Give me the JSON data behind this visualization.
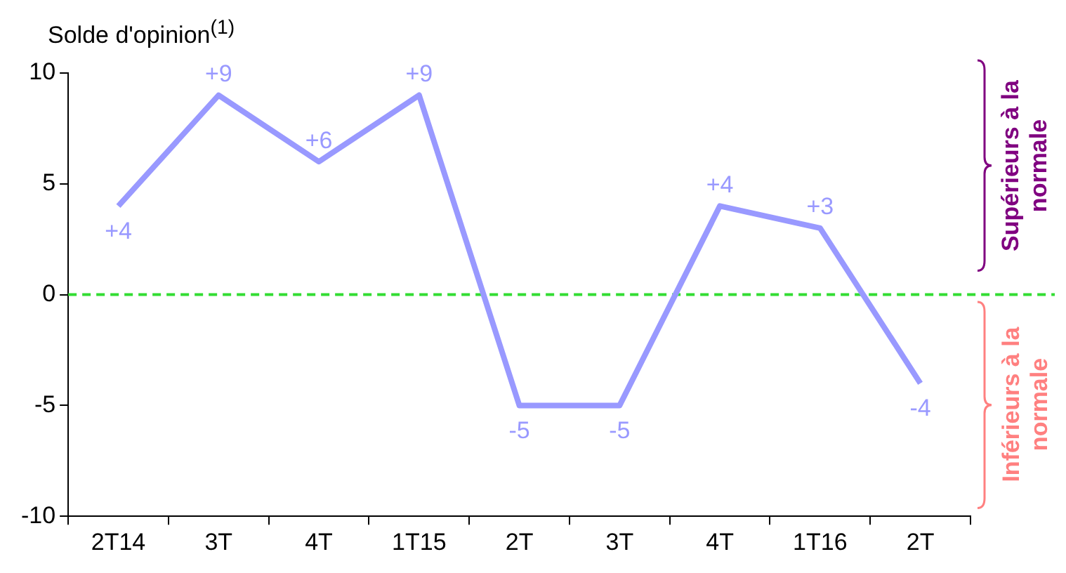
{
  "chart_data": {
    "type": "line",
    "title": "Solde d'opinion$^{(1)}$",
    "categories": [
      "2T14",
      "3T",
      "4T",
      "1T15",
      "2T",
      "3T",
      "4T",
      "1T16",
      "2T"
    ],
    "series": [
      {
        "color": "#9999ff",
        "values": [
          4,
          9,
          6,
          9,
          -5,
          -5,
          4,
          3,
          -4
        ]
      }
    ],
    "value_labels": [
      "+4",
      "+9",
      "+6",
      "+9",
      "-5",
      "-5",
      "+4",
      "+3",
      "-4"
    ],
    "ylim": [
      -10,
      10
    ],
    "yticks": [
      -10,
      -5,
      0,
      5,
      10
    ],
    "grid": false,
    "legend": false,
    "marker": "none",
    "line_style": "solid",
    "ref_lines": [
      {
        "axis": "y",
        "value": 0,
        "color": "#33dd33",
        "line_style": "dashed"
      }
    ],
    "annotations": [
      "Supérieurs à la normale",
      "Inférieurs à la normale"
    ]
  }
}
